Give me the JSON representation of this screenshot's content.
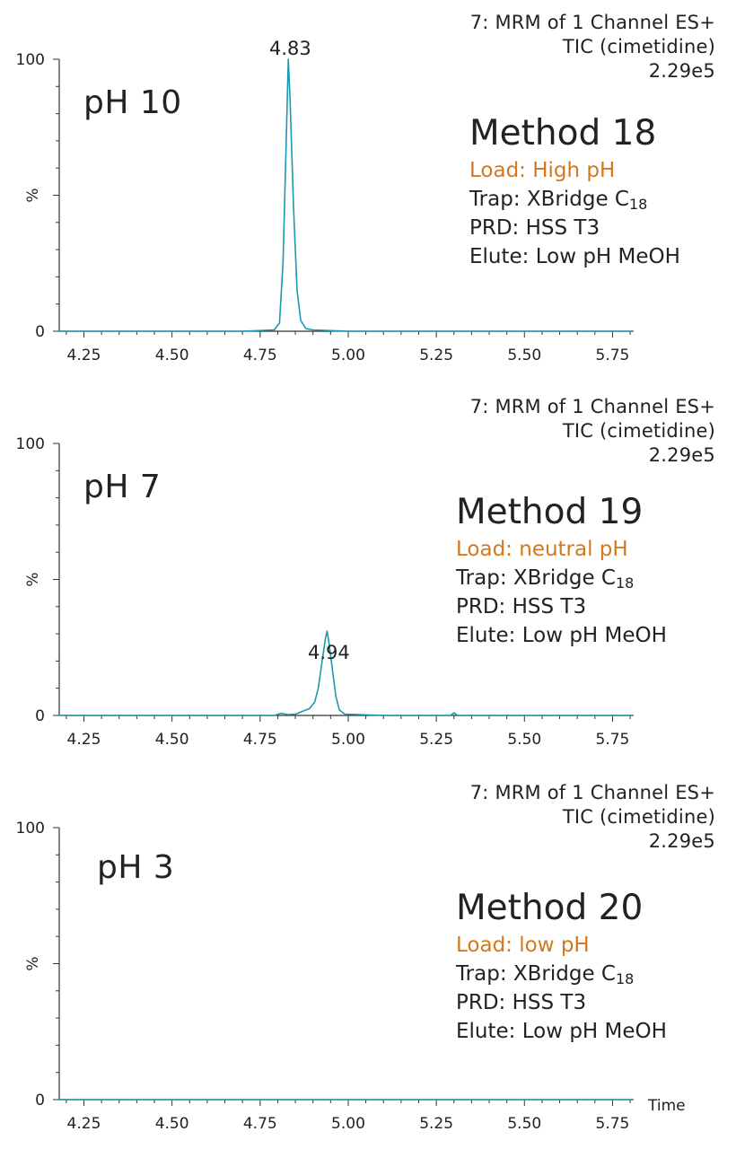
{
  "panels": [
    {
      "header": {
        "line1": "7: MRM of 1 Channel ES+",
        "line2": "TIC (cimetidine)",
        "line3": "2.29e5"
      },
      "ph_label": "pH 10",
      "method": {
        "title": "Method 18",
        "load": "Load: High pH",
        "trap": "Trap: XBridge C",
        "trap_sub": "18",
        "prd": "PRD: HSS T3",
        "elute": "Elute: Low pH MeOH"
      },
      "peak_label": "4.83"
    },
    {
      "header": {
        "line1": "7: MRM of 1 Channel ES+",
        "line2": "TIC (cimetidine)",
        "line3": "2.29e5"
      },
      "ph_label": "pH 7",
      "method": {
        "title": "Method 19",
        "load": "Load: neutral pH",
        "trap": "Trap: XBridge C",
        "trap_sub": "18",
        "prd": "PRD: HSS T3",
        "elute": "Elute: Low pH MeOH"
      },
      "peak_label": "4.94"
    },
    {
      "header": {
        "line1": "7: MRM of 1 Channel ES+",
        "line2": "TIC (cimetidine)",
        "line3": "2.29e5"
      },
      "ph_label": "pH 3",
      "method": {
        "title": "Method 20",
        "load": "Load: low pH",
        "trap": "Trap: XBridge C",
        "trap_sub": "18",
        "prd": "PRD: HSS T3",
        "elute": "Elute: Low pH MeOH"
      },
      "peak_label": ""
    }
  ],
  "chart_data": [
    {
      "type": "line",
      "ylabel": "%",
      "xlabel": "",
      "xlim": [
        4.18,
        5.81
      ],
      "ylim": [
        0,
        100
      ],
      "x_ticks": [
        "4.25",
        "4.50",
        "4.75",
        "5.00",
        "5.25",
        "5.50",
        "5.75"
      ],
      "y_ticks": [
        "0",
        "100"
      ],
      "line_color": "#1a9ab0",
      "series": [
        {
          "x": [
            4.18,
            4.7,
            4.79,
            4.805,
            4.815,
            4.825,
            4.83,
            4.835,
            4.845,
            4.855,
            4.865,
            4.88,
            4.9,
            5.0,
            5.81
          ],
          "y": [
            0,
            0,
            0.5,
            3,
            25,
            75,
            100,
            85,
            45,
            15,
            4,
            1,
            0.5,
            0,
            0
          ]
        }
      ]
    },
    {
      "type": "line",
      "ylabel": "%",
      "xlabel": "",
      "xlim": [
        4.18,
        5.81
      ],
      "ylim": [
        0,
        100
      ],
      "x_ticks": [
        "4.25",
        "4.50",
        "4.75",
        "5.00",
        "5.25",
        "5.50",
        "5.75"
      ],
      "y_ticks": [
        "0",
        "100"
      ],
      "line_color": "#1a9ab0",
      "series": [
        {
          "x": [
            4.18,
            4.79,
            4.81,
            4.83,
            4.85,
            4.87,
            4.89,
            4.905,
            4.915,
            4.925,
            4.935,
            4.94,
            4.945,
            4.955,
            4.965,
            4.975,
            4.99,
            5.1,
            5.29,
            5.3,
            5.31,
            5.81
          ],
          "y": [
            0,
            0,
            0.8,
            0.3,
            0.5,
            1.5,
            2.5,
            5,
            10,
            19,
            28,
            31,
            27,
            17,
            7,
            2,
            0.5,
            0,
            0,
            1,
            0,
            0
          ]
        }
      ]
    },
    {
      "type": "line",
      "ylabel": "%",
      "xlabel": "Time",
      "xlim": [
        4.18,
        5.81
      ],
      "ylim": [
        0,
        100
      ],
      "x_ticks": [
        "4.25",
        "4.50",
        "4.75",
        "5.00",
        "5.25",
        "5.50",
        "5.75"
      ],
      "y_ticks": [
        "0",
        "100"
      ],
      "line_color": "#1a9ab0",
      "series": [
        {
          "x": [
            4.18,
            5.81
          ],
          "y": [
            0,
            0
          ]
        }
      ]
    }
  ]
}
